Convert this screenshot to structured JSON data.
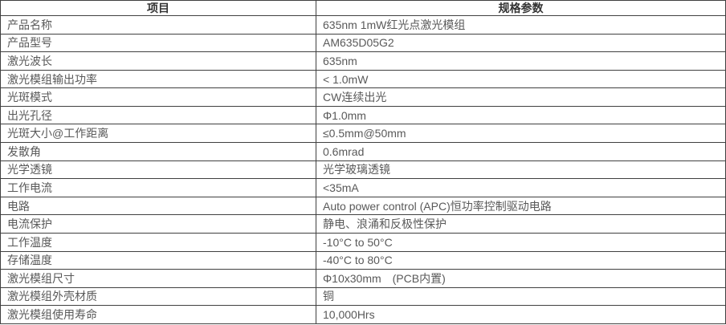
{
  "table": {
    "headers": {
      "item": "项目",
      "value": "规格参数"
    },
    "rows": [
      {
        "item": "产品名称",
        "value": "635nm 1mW红光点激光模组"
      },
      {
        "item": "产品型号",
        "value": "AM635D05G2"
      },
      {
        "item": "激光波长",
        "value": "635nm"
      },
      {
        "item": "激光模组输出功率",
        "value": "< 1.0mW"
      },
      {
        "item": "光斑模式",
        "value": "CW连续出光"
      },
      {
        "item": "出光孔径",
        "value": "Φ1.0mm"
      },
      {
        "item": "光斑大小@工作距离",
        "value": "≤0.5mm@50mm"
      },
      {
        "item": "发散角",
        "value": "0.6mrad"
      },
      {
        "item": "光学透镜",
        "value": "光学玻璃透镜"
      },
      {
        "item": "工作电流",
        "value": "<35mA"
      },
      {
        "item": "电路",
        "value": "Auto power control (APC)恒功率控制驱动电路"
      },
      {
        "item": "电流保护",
        "value": "静电、浪涌和反极性保护"
      },
      {
        "item": "工作温度",
        "value": "-10°C to 50°C"
      },
      {
        "item": "存储温度",
        "value": "-40°C to 80°C"
      },
      {
        "item": "激光模组尺寸",
        "value": "Φ10x30mm　(PCB内置)"
      },
      {
        "item": "激光模组外壳材质",
        "value": "铜"
      },
      {
        "item": "激光模组使用寿命",
        "value": "10,000Hrs"
      }
    ],
    "colors": {
      "border": "#404040",
      "header_text": "#333333",
      "body_text": "#595959",
      "background": "#ffffff"
    }
  }
}
